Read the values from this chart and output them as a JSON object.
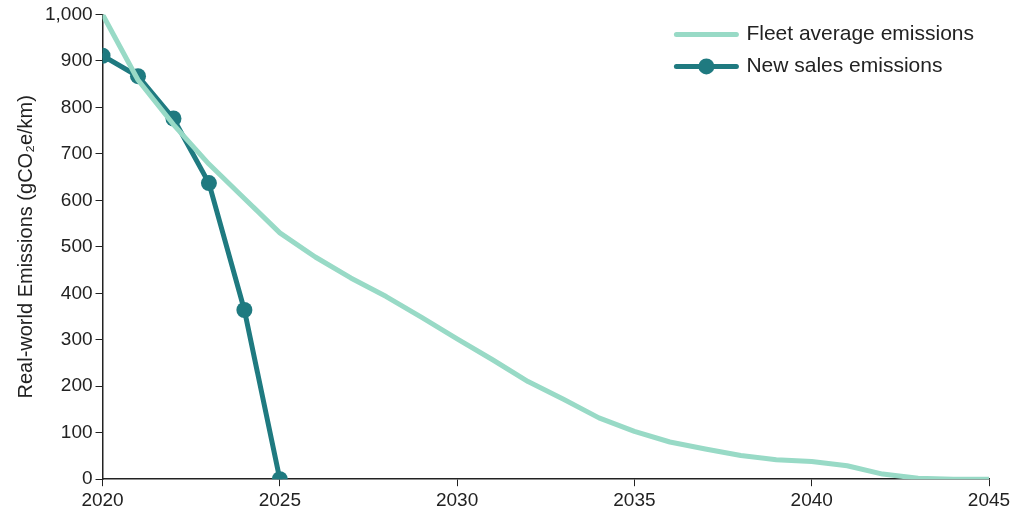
{
  "chart_data": {
    "type": "line",
    "ylabel": "Real-world Emissions (gCO₂e/km)",
    "xlim": [
      2020,
      2045
    ],
    "xticks": [
      2020,
      2025,
      2030,
      2035,
      2040,
      2045
    ],
    "ylim": [
      0,
      1000
    ],
    "yticks": [
      0,
      100,
      200,
      300,
      400,
      500,
      600,
      700,
      800,
      900,
      {
        "value": 1000,
        "label": "1,000"
      }
    ],
    "grid": false,
    "legend": "top right",
    "series": [
      {
        "name": "Fleet average emissions",
        "color": "#98dac6",
        "marker": "none",
        "x": [
          2020,
          2021,
          2022,
          2023,
          2024,
          2025,
          2026,
          2027,
          2028,
          2029,
          2030,
          2031,
          2032,
          2033,
          2034,
          2035,
          2036,
          2037,
          2038,
          2039,
          2040,
          2041,
          2042,
          2043,
          2044,
          2045
        ],
        "values": [
          1000,
          859,
          763,
          678,
          604,
          530,
          478,
          433,
          393,
          348,
          302,
          257,
          210,
          172,
          132,
          103,
          80,
          65,
          51,
          42,
          38,
          29,
          11,
          2,
          0,
          0
        ]
      },
      {
        "name": "New sales emissions",
        "color": "#1f7a80",
        "marker": "circle",
        "x": [
          2020,
          2021,
          2022,
          2023,
          2024,
          2025
        ],
        "values": [
          911,
          867,
          776,
          637,
          364,
          0
        ]
      }
    ]
  }
}
